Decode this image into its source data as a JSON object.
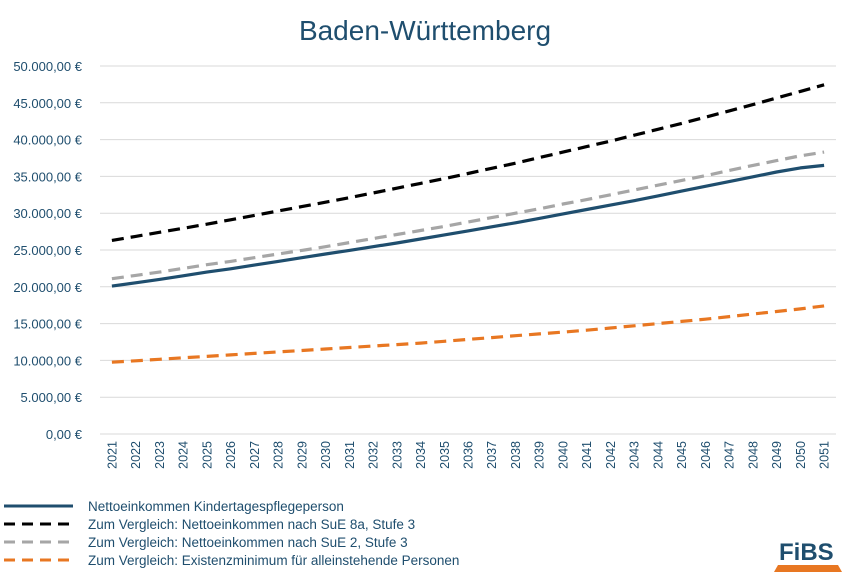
{
  "chart_data": {
    "type": "line",
    "title": "Baden-Württemberg",
    "xlabel": "",
    "ylabel": "",
    "ylim": [
      0,
      50000
    ],
    "y_ticks": [
      "0,00 €",
      "5.000,00 €",
      "10.000,00 €",
      "15.000,00 €",
      "20.000,00 €",
      "25.000,00 €",
      "30.000,00 €",
      "35.000,00 €",
      "40.000,00 €",
      "45.000,00 €",
      "50.000,00 €"
    ],
    "y_tick_values": [
      0,
      5000,
      10000,
      15000,
      20000,
      25000,
      30000,
      35000,
      40000,
      45000,
      50000
    ],
    "x": [
      "2021",
      "2022",
      "2023",
      "2024",
      "2025",
      "2026",
      "2027",
      "2028",
      "2029",
      "2030",
      "2031",
      "2032",
      "2033",
      "2034",
      "2035",
      "2036",
      "2037",
      "2038",
      "2039",
      "2040",
      "2041",
      "2042",
      "2043",
      "2044",
      "2045",
      "2046",
      "2047",
      "2048",
      "2049",
      "2050",
      "2051"
    ],
    "grid": true,
    "legend_position": "bottom-left",
    "series": [
      {
        "name": "Nettoeinkommen Kindertagespflegeperson",
        "color": "#1f4e6e",
        "style": "solid",
        "values": [
          20100,
          20550,
          21000,
          21500,
          22000,
          22450,
          22950,
          23450,
          23950,
          24450,
          24950,
          25450,
          25950,
          26500,
          27050,
          27600,
          28150,
          28700,
          29300,
          29900,
          30500,
          31100,
          31700,
          32350,
          33000,
          33650,
          34300,
          34950,
          35600,
          36150,
          36500
        ]
      },
      {
        "name": "Zum Vergleich: Nettoeinkommen nach SuE 8a, Stufe 3",
        "color": "#000000",
        "style": "dashed",
        "values": [
          26300,
          26850,
          27400,
          27950,
          28500,
          29100,
          29700,
          30300,
          30900,
          31500,
          32100,
          32750,
          33400,
          34050,
          34700,
          35400,
          36100,
          36800,
          37550,
          38300,
          39050,
          39800,
          40600,
          41400,
          42200,
          43050,
          43900,
          44750,
          45650,
          46550,
          47450
        ]
      },
      {
        "name": "Zum Vergleich: Nettoeinkommen nach SuE 2, Stufe 3",
        "color": "#a6a6a6",
        "style": "dashed",
        "values": [
          21100,
          21550,
          22000,
          22500,
          23000,
          23450,
          23950,
          24450,
          24950,
          25450,
          26000,
          26550,
          27100,
          27650,
          28200,
          28800,
          29400,
          30000,
          30600,
          31250,
          31850,
          32500,
          33150,
          33800,
          34450,
          35100,
          35800,
          36500,
          37150,
          37800,
          38300
        ]
      },
      {
        "name": "Zum Vergleich: Existenzminimum für alleinstehende Personen",
        "color": "#e87722",
        "style": "dashed",
        "values": [
          9750,
          9950,
          10150,
          10350,
          10550,
          10750,
          10950,
          11150,
          11350,
          11550,
          11750,
          11950,
          12150,
          12350,
          12600,
          12850,
          13100,
          13350,
          13600,
          13850,
          14100,
          14400,
          14700,
          15000,
          15300,
          15600,
          15950,
          16300,
          16650,
          17000,
          17400
        ]
      }
    ]
  },
  "logo": {
    "text": "FiBS",
    "color": "#1f4e6e",
    "accent": "#e87722"
  }
}
